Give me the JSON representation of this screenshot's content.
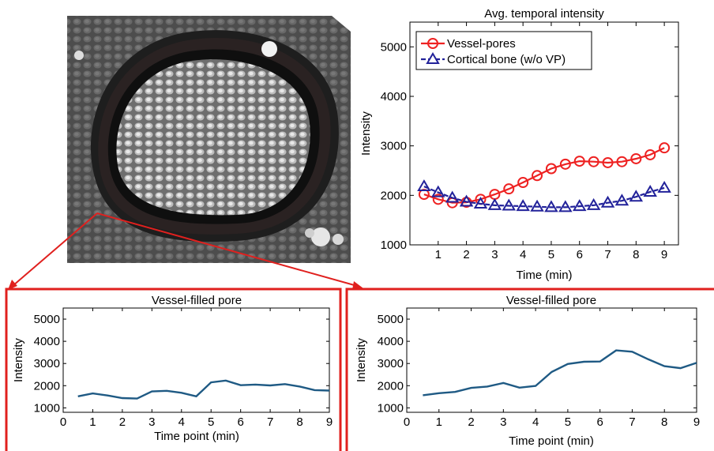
{
  "colors": {
    "vessel_pores": "#ee2222",
    "cortical_bone": "#22229a",
    "pore_line": "#1f5a84",
    "callout": "#e0201e"
  },
  "scan_image": {
    "description_icon": "micro-ct-bone-cross-section"
  },
  "chart_data": [
    {
      "type": "line",
      "title": "Avg. temporal intensity",
      "xlabel": "Time (min)",
      "ylabel": "Intensity",
      "xlim": [
        0,
        9.5
      ],
      "ylim": [
        1000,
        5500
      ],
      "xticks": [
        1,
        2,
        3,
        4,
        5,
        6,
        7,
        8,
        9
      ],
      "yticks": [
        1000,
        2000,
        3000,
        4000,
        5000
      ],
      "legend_position": "top-left",
      "grid": false,
      "x": [
        0.5,
        1,
        1.5,
        2,
        2.5,
        3,
        3.5,
        4,
        4.5,
        5,
        5.5,
        6,
        6.5,
        7,
        7.5,
        8,
        8.5,
        9
      ],
      "series": [
        {
          "name": "Vessel-pores",
          "marker": "circle",
          "values": [
            2020,
            1920,
            1850,
            1860,
            1920,
            2020,
            2130,
            2260,
            2400,
            2540,
            2630,
            2690,
            2680,
            2660,
            2680,
            2740,
            2820,
            2960
          ]
        },
        {
          "name": "Cortical bone (w/o VP)",
          "marker": "triangle",
          "values": [
            2180,
            2060,
            1950,
            1870,
            1830,
            1800,
            1790,
            1780,
            1770,
            1760,
            1760,
            1780,
            1800,
            1850,
            1890,
            1970,
            2070,
            2150
          ]
        }
      ]
    },
    {
      "type": "line",
      "title": "Vessel-filled pore",
      "xlabel": "Time point (min)",
      "ylabel": "Intensity",
      "xlim": [
        0,
        9
      ],
      "ylim": [
        800,
        5500
      ],
      "xticks": [
        0,
        1,
        2,
        3,
        4,
        5,
        6,
        7,
        8,
        9
      ],
      "yticks": [
        1000,
        2000,
        3000,
        4000,
        5000
      ],
      "grid": false,
      "x": [
        0.5,
        1,
        1.5,
        2,
        2.5,
        3,
        3.5,
        4,
        4.5,
        5,
        5.5,
        6,
        6.5,
        7,
        7.5,
        8,
        8.5,
        9
      ],
      "series": [
        {
          "values": [
            1520,
            1650,
            1560,
            1440,
            1420,
            1740,
            1770,
            1680,
            1520,
            2150,
            2230,
            2020,
            2050,
            2010,
            2070,
            1960,
            1800,
            1780
          ]
        }
      ]
    },
    {
      "type": "line",
      "title": "Vessel-filled pore",
      "xlabel": "Time point (min)",
      "ylabel": "Intensity",
      "xlim": [
        0,
        9
      ],
      "ylim": [
        800,
        5500
      ],
      "xticks": [
        0,
        1,
        2,
        3,
        4,
        5,
        6,
        7,
        8,
        9
      ],
      "yticks": [
        1000,
        2000,
        3000,
        4000,
        5000
      ],
      "grid": false,
      "x": [
        0.5,
        1,
        1.5,
        2,
        2.5,
        3,
        3.5,
        4,
        4.5,
        5,
        5.5,
        6,
        6.5,
        7,
        7.5,
        8,
        8.5,
        9
      ],
      "series": [
        {
          "values": [
            1570,
            1660,
            1720,
            1900,
            1960,
            2120,
            1910,
            1990,
            2620,
            2980,
            3080,
            3090,
            3590,
            3530,
            3190,
            2880,
            2790,
            3030
          ]
        }
      ]
    }
  ]
}
